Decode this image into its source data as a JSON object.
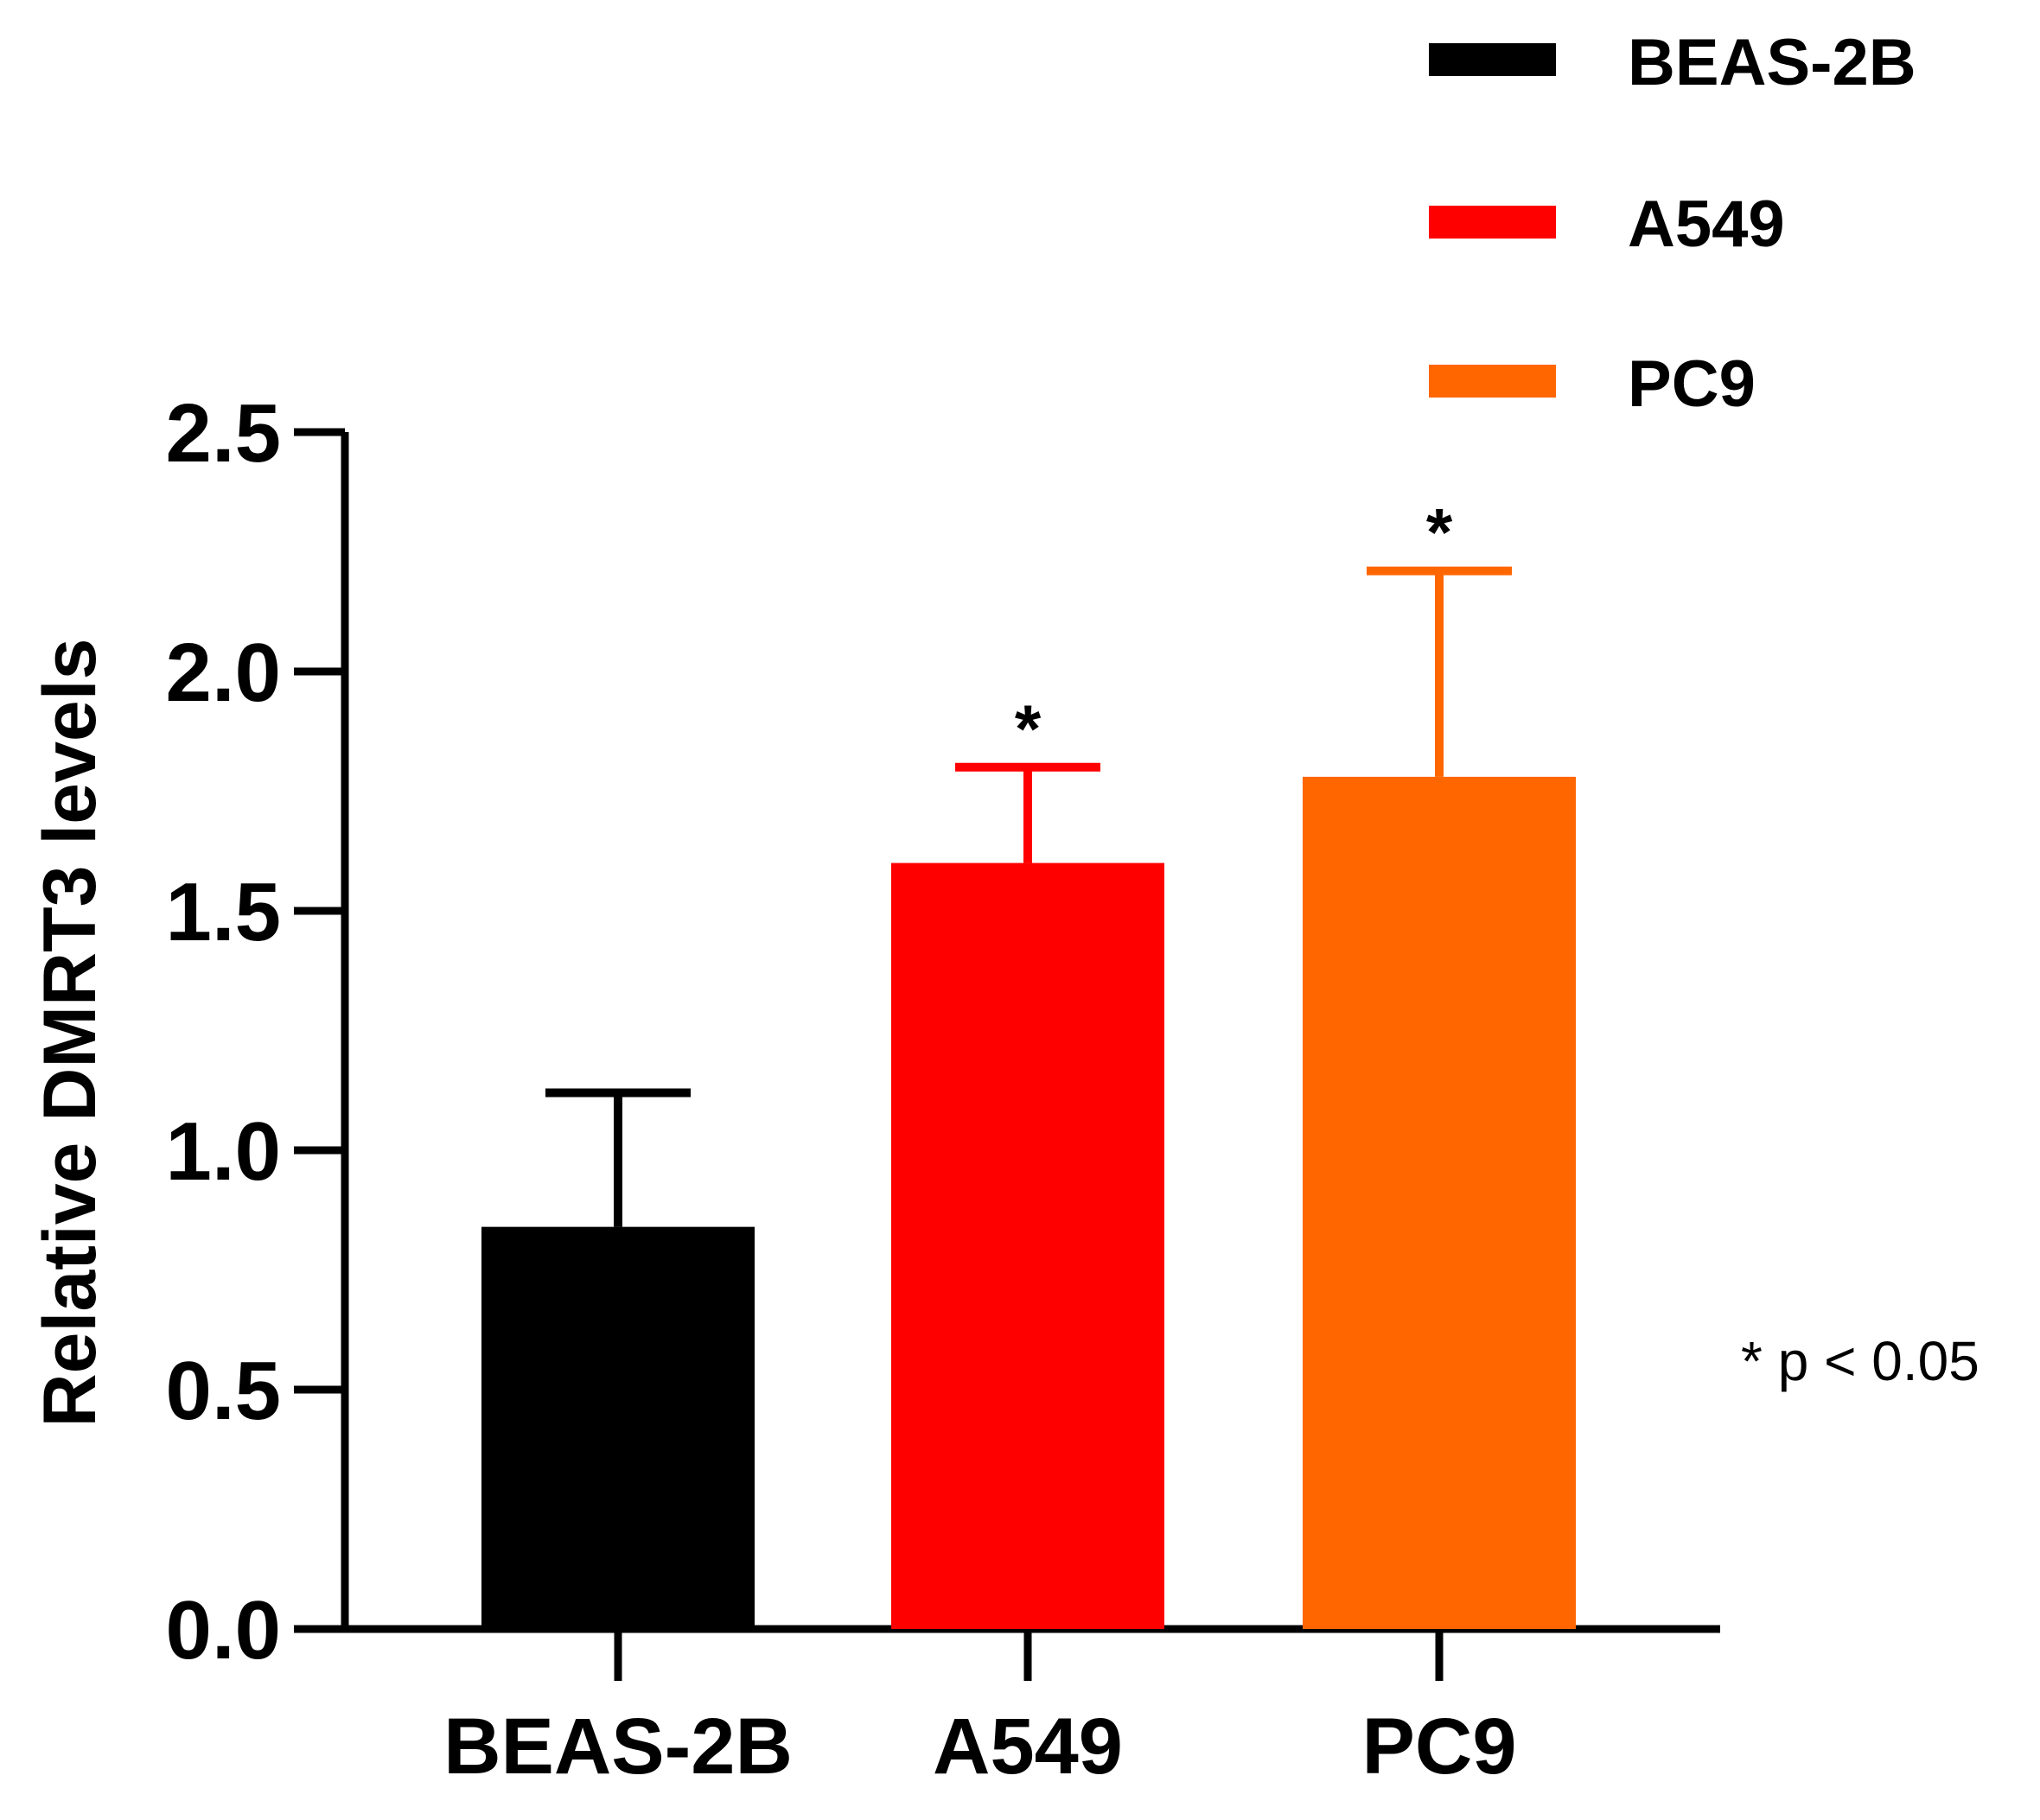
{
  "chart_data": {
    "type": "bar",
    "categories": [
      "BEAS-2B",
      "A549",
      "PC9"
    ],
    "values": [
      0.84,
      1.6,
      1.78
    ],
    "errors": [
      0.28,
      0.2,
      0.43
    ],
    "significance": [
      "",
      "*",
      "*"
    ],
    "colors": [
      "#000000",
      "#ff0000",
      "#ff6600"
    ],
    "title": "",
    "xlabel": "",
    "ylabel": "Relative DMRT3 levels",
    "ylim": [
      0,
      2.5
    ],
    "yticks": [
      "0.0",
      "0.5",
      "1.0",
      "1.5",
      "2.0",
      "2.5"
    ],
    "ytick_values": [
      0,
      0.5,
      1.0,
      1.5,
      2.0,
      2.5
    ],
    "legend": {
      "position": "top-right",
      "entries": [
        {
          "label": "BEAS-2B",
          "color": "#000000"
        },
        {
          "label": "A549",
          "color": "#ff0000"
        },
        {
          "label": "PC9",
          "color": "#ff6600"
        }
      ]
    },
    "annotation": "* p < 0.05"
  }
}
